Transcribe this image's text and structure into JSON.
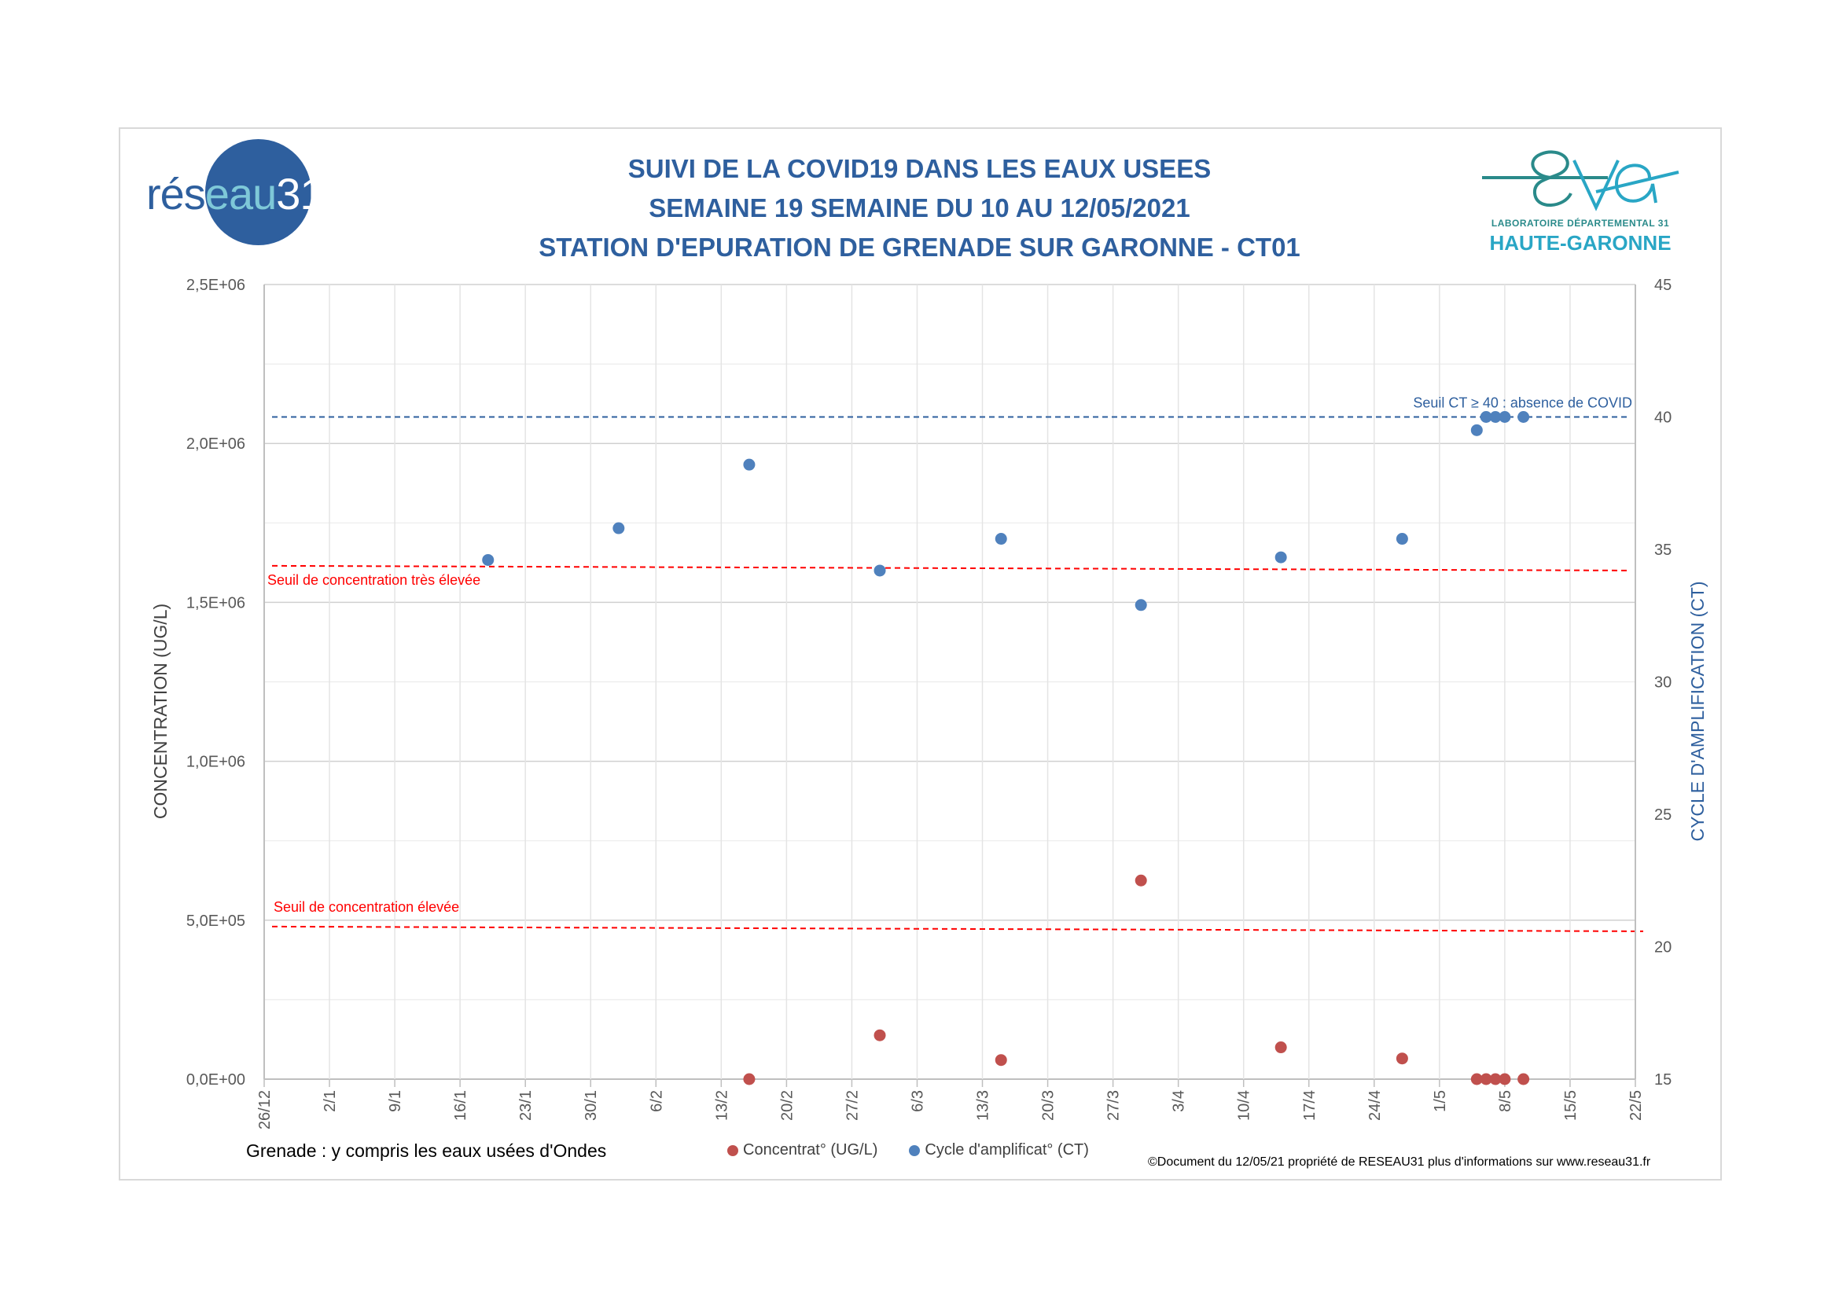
{
  "title": {
    "line1": "SUIVI DE LA COVID19 DANS LES EAUX USEES",
    "line2": "SEMAINE 19 SEMAINE DU 10 AU 12/05/2021",
    "line3": "STATION D'EPURATION DE GRENADE SUR GARONNE - CT01"
  },
  "logos": {
    "reseau31": {
      "part1": "rés",
      "part2": "eau",
      "part3": "31"
    },
    "eva": {
      "wordmark": "eva",
      "lab_line": "LABORATOIRE DÉPARTEMENTAL 31",
      "region": "HAUTE-GARONNE"
    }
  },
  "colors": {
    "title": "#2e5f9e",
    "concentration": "#c0504d",
    "ct": "#4f81bd",
    "threshold_red": "#ff0000",
    "threshold_blue": "#2e5f9e"
  },
  "chart_data": {
    "type": "scatter",
    "x_type": "date",
    "xlim": [
      "2020-12-26",
      "2021-05-22"
    ],
    "x_ticks": [
      "26/12",
      "2/1",
      "9/1",
      "16/1",
      "23/1",
      "30/1",
      "6/2",
      "13/2",
      "20/2",
      "27/2",
      "6/3",
      "13/3",
      "20/3",
      "27/3",
      "3/4",
      "10/4",
      "17/4",
      "24/4",
      "1/5",
      "8/5",
      "15/5",
      "22/5"
    ],
    "y_left": {
      "label": "CONCENTRATION (UG/L)",
      "lim": [
        0,
        2500000
      ],
      "ticks": [
        "0,0E+00",
        "5,0E+05",
        "1,0E+06",
        "1,5E+06",
        "2,0E+06",
        "2,5E+06"
      ]
    },
    "y_right": {
      "label": "CYCLE D'AMPLIFICATION (CT)",
      "lim": [
        15,
        45
      ],
      "ticks": [
        "15",
        "20",
        "25",
        "30",
        "35",
        "40",
        "45"
      ]
    },
    "series": [
      {
        "name": "Concentrat° (UG/L)",
        "axis": "left",
        "color": "#c0504d",
        "points": [
          {
            "x": "2021-02-16",
            "y": 0
          },
          {
            "x": "2021-03-02",
            "y": 138000
          },
          {
            "x": "2021-03-15",
            "y": 60000
          },
          {
            "x": "2021-03-30",
            "y": 625000
          },
          {
            "x": "2021-04-14",
            "y": 100000
          },
          {
            "x": "2021-04-27",
            "y": 65000
          },
          {
            "x": "2021-05-05",
            "y": 0
          },
          {
            "x": "2021-05-06",
            "y": 0
          },
          {
            "x": "2021-05-07",
            "y": 0
          },
          {
            "x": "2021-05-08",
            "y": 0
          },
          {
            "x": "2021-05-10",
            "y": 0
          }
        ]
      },
      {
        "name": "Cycle d'amplificat° (CT)",
        "axis": "right",
        "color": "#4f81bd",
        "points": [
          {
            "x": "2021-01-19",
            "y": 34.6
          },
          {
            "x": "2021-02-02",
            "y": 35.8
          },
          {
            "x": "2021-02-16",
            "y": 38.2
          },
          {
            "x": "2021-03-02",
            "y": 34.2
          },
          {
            "x": "2021-03-15",
            "y": 35.4
          },
          {
            "x": "2021-03-30",
            "y": 32.9
          },
          {
            "x": "2021-04-14",
            "y": 34.7
          },
          {
            "x": "2021-04-27",
            "y": 35.4
          },
          {
            "x": "2021-05-05",
            "y": 39.5
          },
          {
            "x": "2021-05-06",
            "y": 40
          },
          {
            "x": "2021-05-07",
            "y": 40
          },
          {
            "x": "2021-05-08",
            "y": 40
          },
          {
            "x": "2021-05-10",
            "y": 40
          }
        ]
      }
    ],
    "thresholds": [
      {
        "label": "Seuil CT ≥ 40 : absence de COVID",
        "axis": "right",
        "y": 40,
        "color": "#2e5f9e"
      },
      {
        "label": "Seuil de concentration très élevée",
        "axis": "left",
        "y": 1615000,
        "color": "#ff0000"
      },
      {
        "label": "Seuil de concentration élevée",
        "axis": "left",
        "y": 480000,
        "color": "#ff0000"
      }
    ],
    "grid": true,
    "legend_position": "bottom"
  },
  "footer": {
    "note": "Grenade : y compris les eaux usées d'Ondes",
    "copyright": "©Document du 12/05/21 propriété de RESEAU31 plus d'informations sur www.reseau31.fr"
  }
}
